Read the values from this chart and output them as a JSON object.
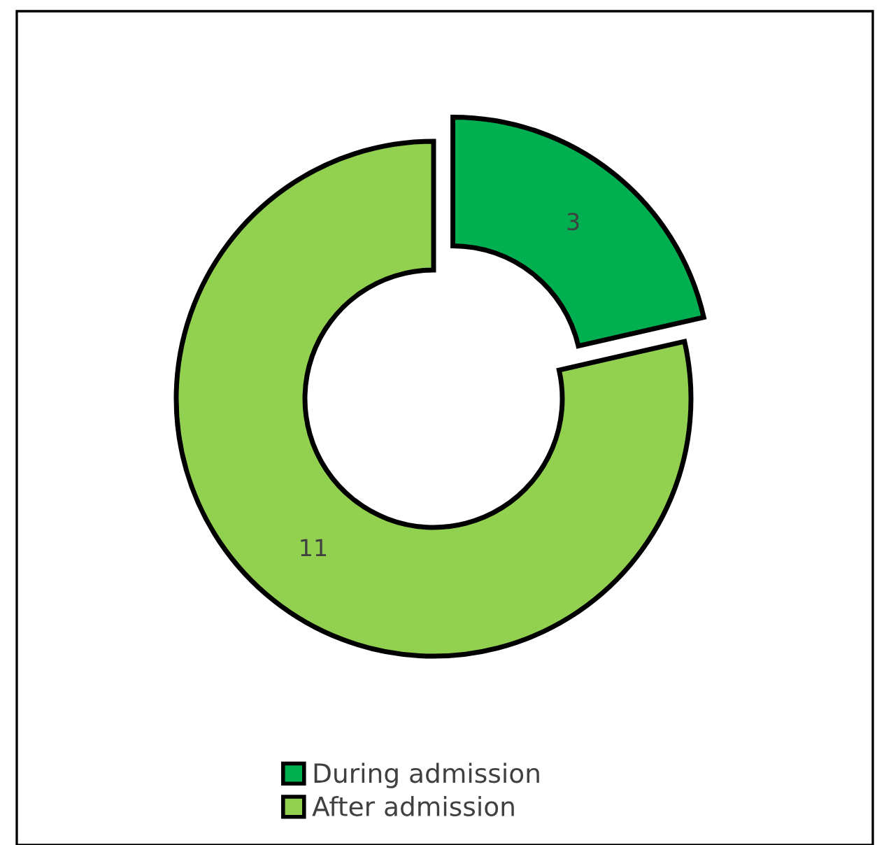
{
  "chart_data": {
    "type": "donut",
    "categories": [
      "During admission",
      "After admission"
    ],
    "values": [
      3,
      11
    ],
    "colors": [
      "#00b050",
      "#92d050"
    ],
    "data_labels": true,
    "legend": "bottom"
  }
}
